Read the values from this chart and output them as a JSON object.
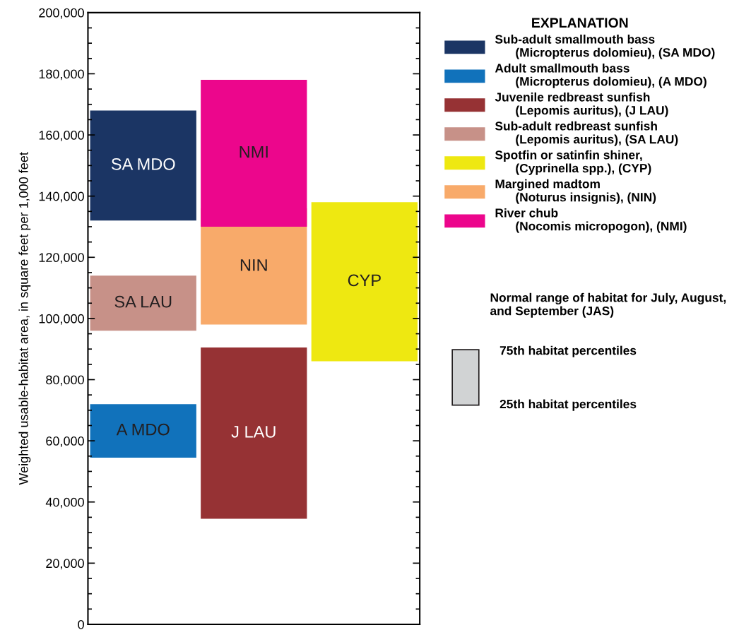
{
  "chart_data": {
    "type": "bar",
    "ylabel": "Weighted usable-habitat area, in square feet per 1,000 feet",
    "legend_title": "EXPLANATION",
    "legend": "right",
    "categories": [
      null,
      null,
      null
    ],
    "series": [
      {
        "name": "Sub-adult smallmouth bass (Micropterus dolomieu), (SA MDO)",
        "color": "#1b3564",
        "base": [
          132000,
          null,
          null
        ],
        "values": [
          36000,
          null,
          null
        ],
        "value_labels": [
          "SA MDO",
          null,
          null
        ]
      },
      {
        "name": "Adult smallmouth bass (Micropterus dolomieu), (A MDO)",
        "color": "#1172bb",
        "base": [
          54500,
          null,
          null
        ],
        "values": [
          17500,
          null,
          null
        ],
        "value_labels": [
          "A MDO",
          null,
          null
        ]
      },
      {
        "name": "Juvenile redbreast sunfish (Lepomis auritus), (J LAU)",
        "color": "#963234",
        "base": [
          null,
          34500,
          null
        ],
        "values": [
          null,
          56000,
          null
        ],
        "value_labels": [
          null,
          "J LAU",
          null
        ]
      },
      {
        "name": "Sub-adult redbreast sunfish (Lepomis auritus), (SA LAU)",
        "color": "#c79188",
        "base": [
          96000,
          null,
          null
        ],
        "values": [
          18000,
          null,
          null
        ],
        "value_labels": [
          "SA LAU",
          null,
          null
        ]
      },
      {
        "name": "Spotfin or satinfin shiner, (Cyprinella spp.), (CYP)",
        "color": "#eee811",
        "base": [
          null,
          null,
          86000
        ],
        "values": [
          null,
          null,
          52000
        ],
        "value_labels": [
          null,
          null,
          "CYP"
        ]
      },
      {
        "name": "Margined madtom (Noturus insignis), (NIN)",
        "color": "#f8aa6a",
        "base": [
          null,
          98000,
          null
        ],
        "values": [
          null,
          38000,
          null
        ],
        "value_labels": [
          null,
          "NIN",
          null
        ]
      },
      {
        "name": "River chub (Nocomis micropogon), (NMI)",
        "color": "#ec068c",
        "base": [
          null,
          130000,
          null
        ],
        "values": [
          null,
          48000,
          null
        ],
        "value_labels": [
          null,
          "NMI",
          null
        ]
      }
    ],
    "ylim": [
      0,
      200000
    ],
    "yticks": [
      {
        "value": 0,
        "label": "0"
      },
      {
        "value": 5000,
        "label": null
      },
      {
        "value": 10000,
        "label": null
      },
      {
        "value": 15000,
        "label": null
      },
      {
        "value": 20000,
        "label": "20,000"
      },
      {
        "value": 25000,
        "label": null
      },
      {
        "value": 30000,
        "label": null
      },
      {
        "value": 35000,
        "label": null
      },
      {
        "value": 40000,
        "label": "40,000"
      },
      {
        "value": 45000,
        "label": null
      },
      {
        "value": 50000,
        "label": null
      },
      {
        "value": 55000,
        "label": null
      },
      {
        "value": 60000,
        "label": "60,000"
      },
      {
        "value": 65000,
        "label": null
      },
      {
        "value": 70000,
        "label": null
      },
      {
        "value": 75000,
        "label": null
      },
      {
        "value": 80000,
        "label": "80,000"
      },
      {
        "value": 85000,
        "label": null
      },
      {
        "value": 90000,
        "label": null
      },
      {
        "value": 95000,
        "label": null
      },
      {
        "value": 100000,
        "label": "100,000"
      },
      {
        "value": 105000,
        "label": null
      },
      {
        "value": 110000,
        "label": null
      },
      {
        "value": 115000,
        "label": null
      },
      {
        "value": 120000,
        "label": "120,000"
      },
      {
        "value": 125000,
        "label": null
      },
      {
        "value": 130000,
        "label": null
      },
      {
        "value": 135000,
        "label": null
      },
      {
        "value": 140000,
        "label": "140,000"
      },
      {
        "value": 145000,
        "label": null
      },
      {
        "value": 150000,
        "label": null
      },
      {
        "value": 155000,
        "label": null
      },
      {
        "value": 160000,
        "label": "160,000"
      },
      {
        "value": 165000,
        "label": null
      },
      {
        "value": 170000,
        "label": null
      },
      {
        "value": 175000,
        "label": null
      },
      {
        "value": 180000,
        "label": "180,000"
      },
      {
        "value": 185000,
        "label": null
      },
      {
        "value": 190000,
        "label": null
      },
      {
        "value": 195000,
        "label": null
      },
      {
        "value": 200000,
        "label": "200,000"
      }
    ],
    "grid": false,
    "tick_labels": "y",
    "annotations": [
      "Normal range of habitat for July, August, and September (JAS)",
      "75th habitat percentiles",
      "25th habitat percentiles"
    ]
  }
}
